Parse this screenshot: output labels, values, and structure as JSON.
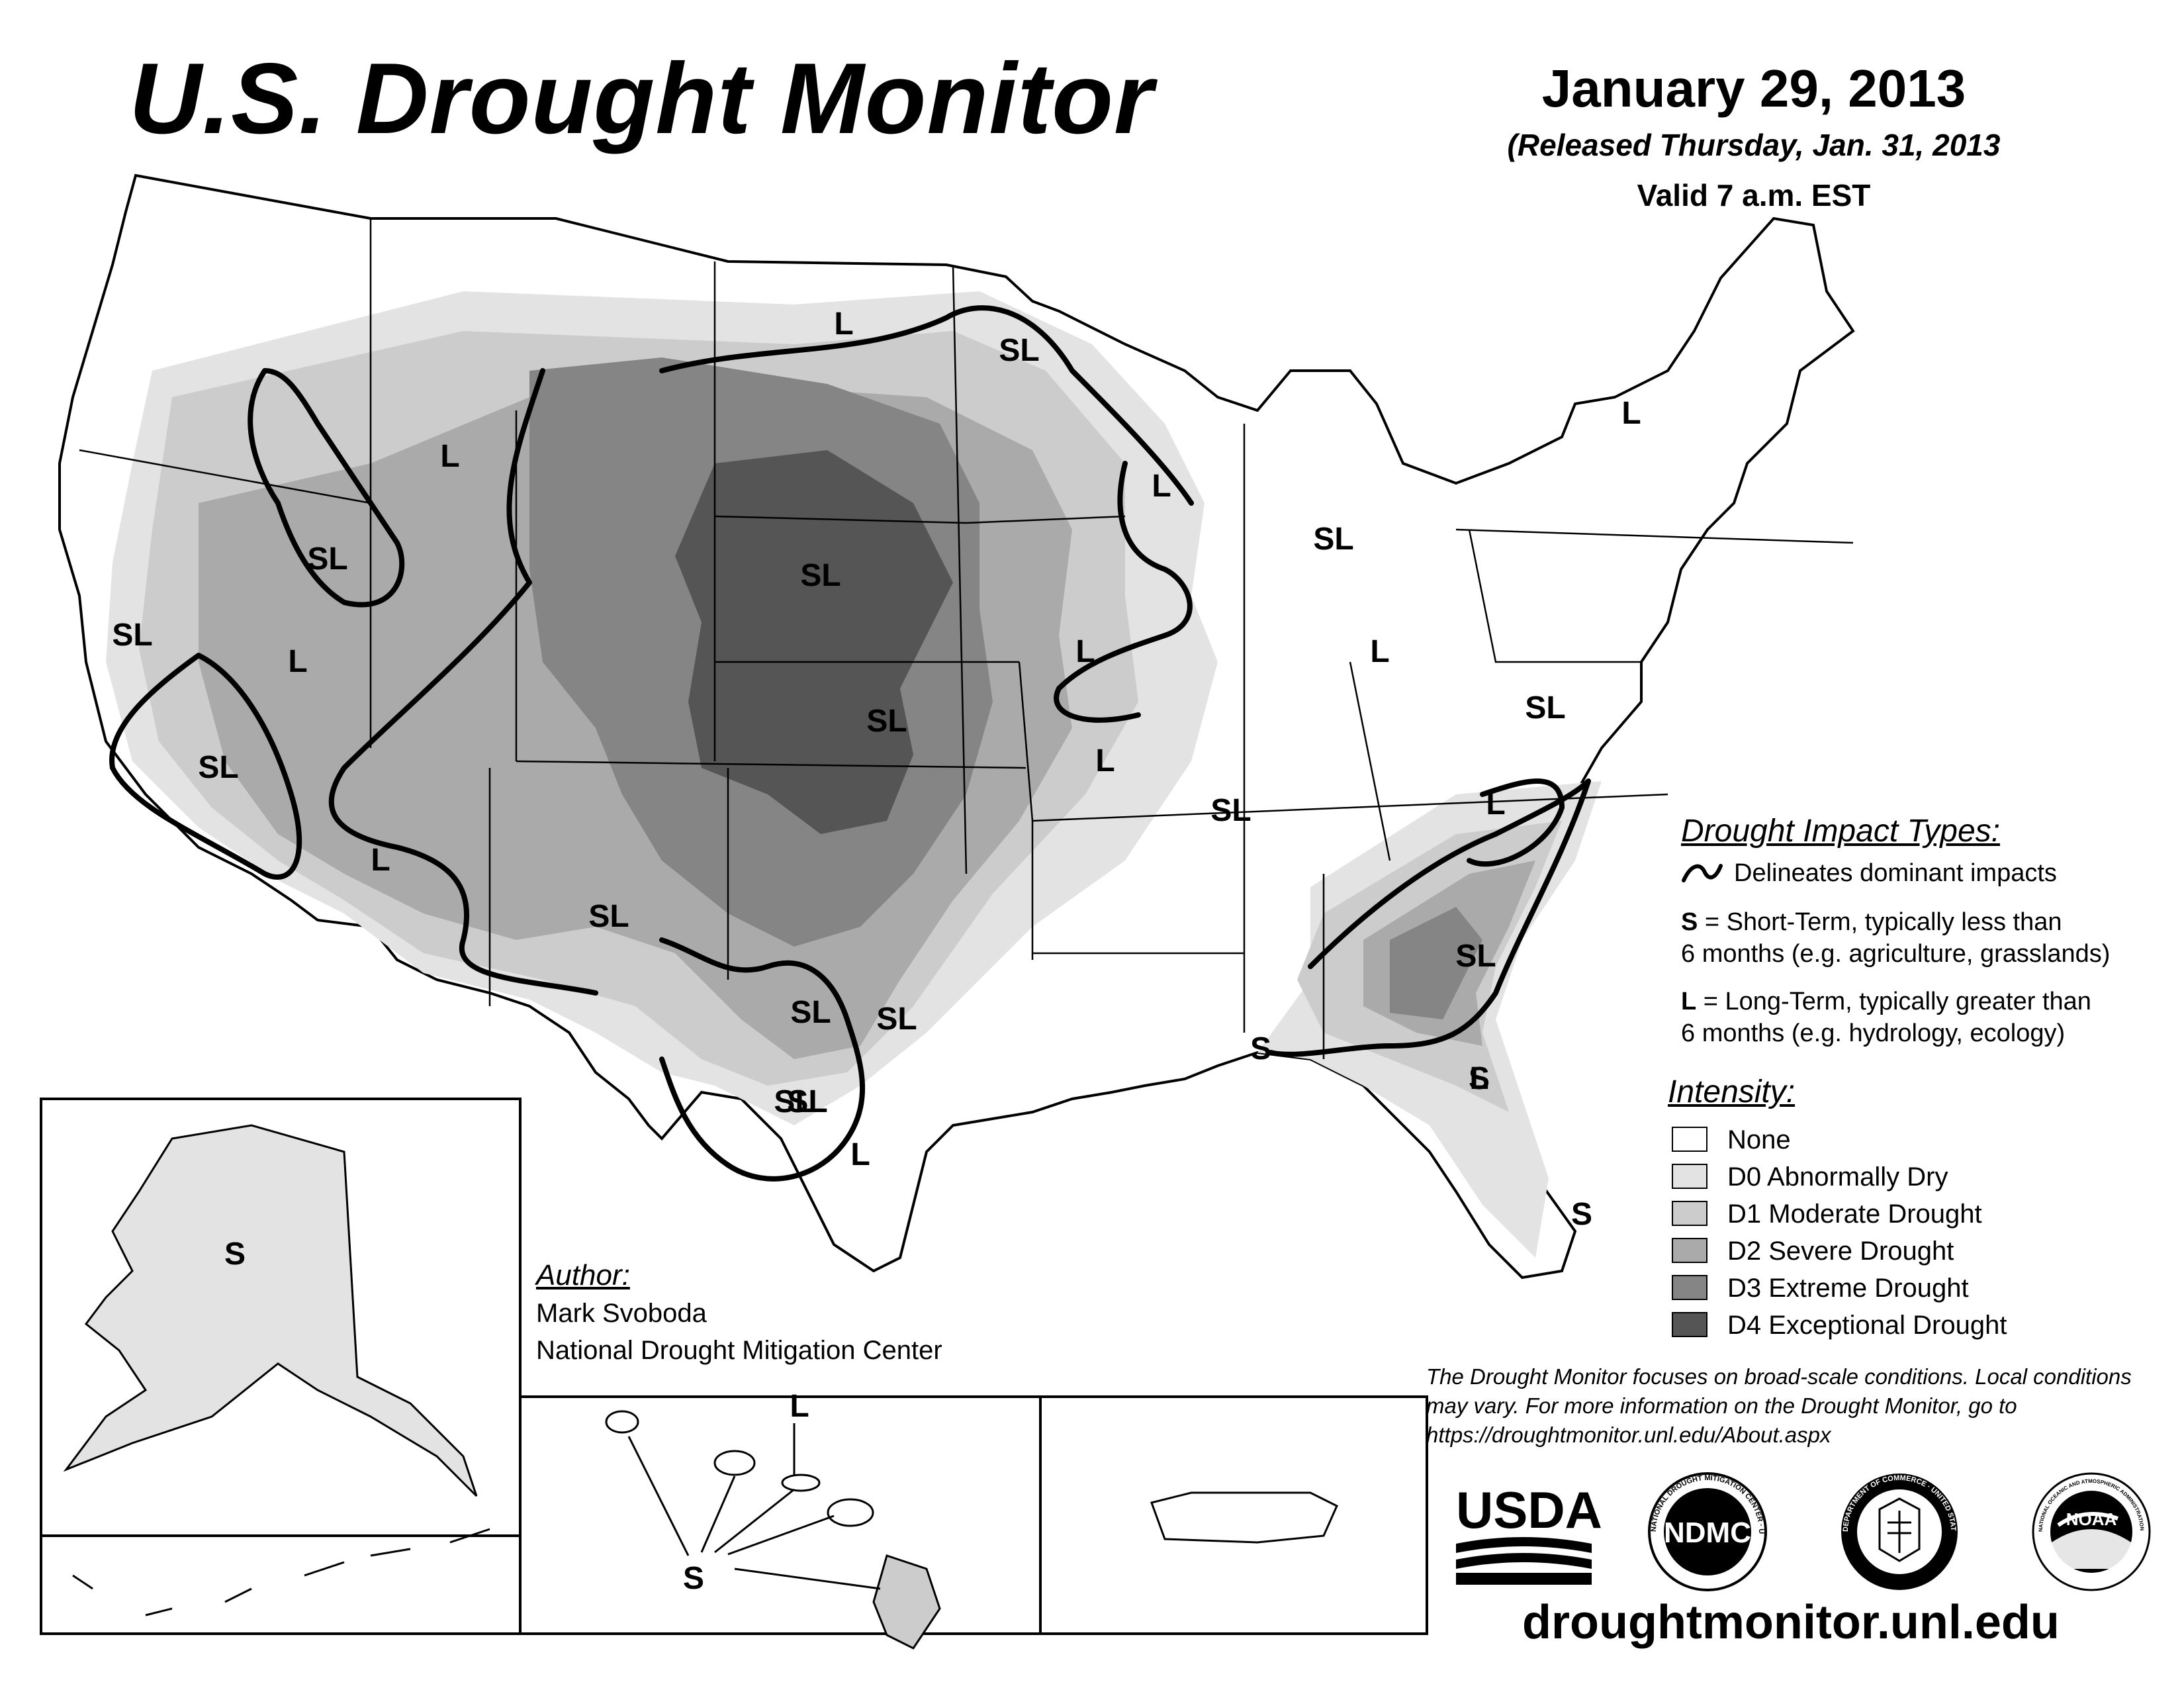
{
  "title": "U.S. Drought Monitor",
  "date": "January 29, 2013",
  "released": "(Released Thursday, Jan. 31, 2013",
  "valid": "Valid 7 a.m. EST",
  "impact_types": {
    "heading": "Drought Impact Types:",
    "line_label": "Delineates dominant impacts",
    "s_key": "S",
    "s_line1": " = Short-Term, typically less than",
    "s_line2": "6 months (e.g. agriculture, grasslands)",
    "l_key": "L",
    "l_line1": " = Long-Term, typically greater than",
    "l_line2": "6 months (e.g. hydrology, ecology)"
  },
  "intensity": {
    "heading": "Intensity:",
    "levels": [
      {
        "label": "None",
        "color": "#ffffff"
      },
      {
        "label": "D0 Abnormally Dry",
        "color": "#e3e3e3"
      },
      {
        "label": "D1 Moderate Drought",
        "color": "#cccccc"
      },
      {
        "label": "D2 Severe Drought",
        "color": "#aaaaaa"
      },
      {
        "label": "D3 Extreme Drought",
        "color": "#858585"
      },
      {
        "label": "D4 Exceptional Drought",
        "color": "#555555"
      }
    ]
  },
  "author": {
    "heading": "Author:",
    "name": "Mark Svoboda",
    "organization": "National Drought Mitigation Center"
  },
  "disclaimer": "The Drought Monitor focuses on broad-scale conditions. Local conditions may vary. For more information on the Drought Monitor, go to https://droughtmonitor.unl.edu/About.aspx",
  "map_labels": [
    "L",
    "SL",
    "SL",
    "L",
    "SL",
    "L",
    "L",
    "SL",
    "SL",
    "L",
    "SL",
    "SL",
    "L",
    "L",
    "SL",
    "L",
    "SL",
    "SL",
    "SL",
    "L",
    "SL",
    "SL",
    "L",
    "S",
    "S",
    "S",
    "L",
    "SL",
    "L",
    "SL",
    "L",
    "S",
    "S",
    "L"
  ],
  "logos": {
    "usda": "USDA",
    "ndmc": "NDMC",
    "ndmc_ring": "NATIONAL DROUGHT MITIGATION CENTER · UNIVERSITY OF NEBRASKA",
    "commerce_ring": "DEPARTMENT OF COMMERCE · UNITED STATES OF AMERICA",
    "noaa": "NOAA",
    "noaa_ring": "NATIONAL OCEANIC AND ATMOSPHERIC ADMINISTRATION · U.S. DEPARTMENT OF COMMERCE"
  },
  "website": "droughtmonitor.unl.edu"
}
